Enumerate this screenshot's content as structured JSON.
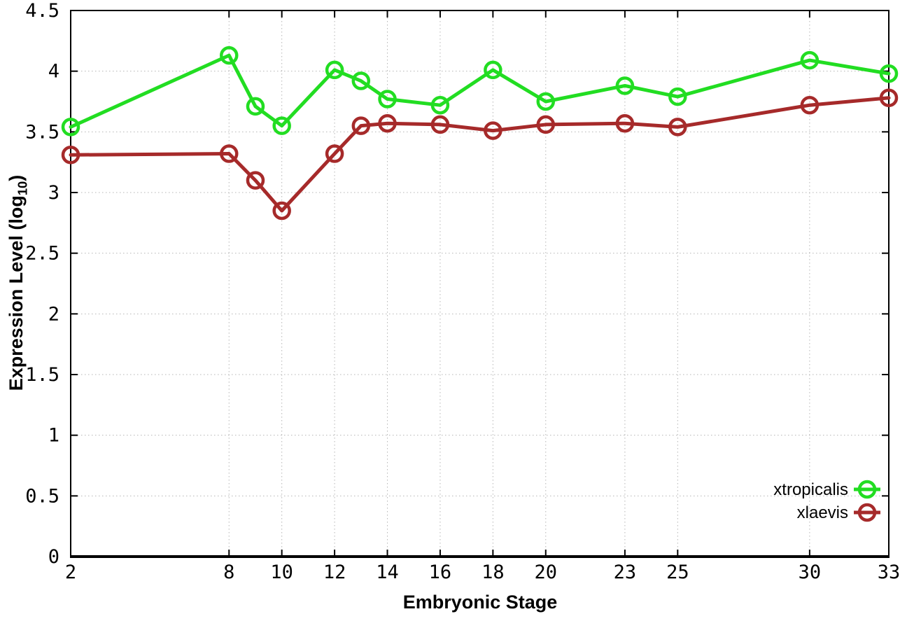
{
  "chart_data": {
    "type": "line",
    "title": "",
    "xlabel": "Embryonic Stage",
    "ylabel": "Expression Level (log10)",
    "ylabel_parts": {
      "pre": "Expression Level (log",
      "sub": "10",
      "post": ")"
    },
    "xlim": [
      2,
      33
    ],
    "ylim": [
      0,
      4.5
    ],
    "grid": true,
    "legend_position": "bottom-right",
    "marker": "open-circle",
    "axis_color": "#000000",
    "grid_color": "#b5b5b5",
    "xticks": [
      2,
      8,
      10,
      12,
      14,
      16,
      18,
      20,
      23,
      25,
      30,
      33
    ],
    "xtick_labels": [
      "2",
      "8",
      "10",
      "12",
      "14",
      "16",
      "18",
      "20",
      "23",
      "25",
      "30",
      "33"
    ],
    "yticks": [
      0,
      0.5,
      1,
      1.5,
      2,
      2.5,
      3,
      3.5,
      4,
      4.5
    ],
    "ytick_labels": [
      "0",
      "0.5",
      "1",
      "1.5",
      "2",
      "2.5",
      "3",
      "3.5",
      "4",
      "4.5"
    ],
    "x": [
      2,
      8,
      9,
      10,
      12,
      13,
      14,
      16,
      18,
      20,
      23,
      25,
      30,
      33
    ],
    "series": [
      {
        "name": "xtropicalis",
        "color": "#22dd22",
        "values": [
          3.54,
          4.13,
          3.71,
          3.55,
          4.01,
          3.92,
          3.77,
          3.72,
          4.01,
          3.75,
          3.88,
          3.79,
          4.09,
          3.98
        ]
      },
      {
        "name": "xlaevis",
        "color": "#a62a2a",
        "values": [
          3.31,
          3.32,
          3.1,
          2.85,
          3.32,
          3.55,
          3.57,
          3.56,
          3.51,
          3.56,
          3.57,
          3.54,
          3.72,
          3.78
        ]
      }
    ]
  }
}
